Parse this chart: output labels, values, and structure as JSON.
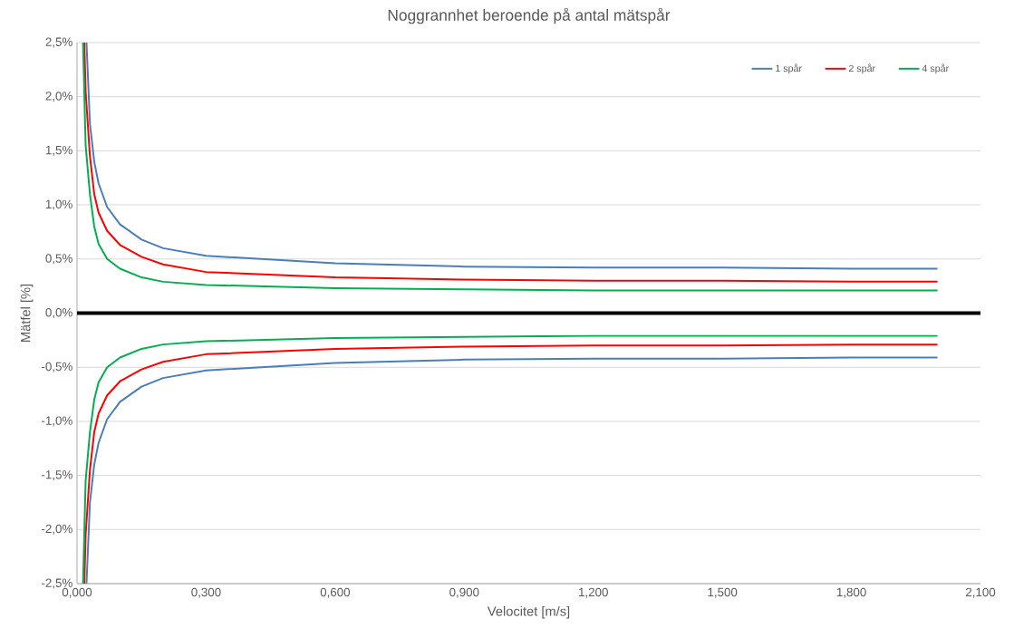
{
  "chart_data": {
    "type": "line",
    "title": "Noggrannhet beroende på antal mätspår",
    "xlabel": "Velocitet [m/s]",
    "ylabel": "Mätfel [%]",
    "series": [
      {
        "name": "1 spår",
        "color": "#4a7ebb",
        "x": [
          0.022,
          0.03,
          0.04,
          0.05,
          0.07,
          0.1,
          0.15,
          0.2,
          0.3,
          0.6,
          0.9,
          1.2,
          1.5,
          1.8,
          2.0
        ],
        "values": [
          2.5,
          1.75,
          1.4,
          1.2,
          0.98,
          0.82,
          0.68,
          0.6,
          0.53,
          0.46,
          0.43,
          0.42,
          0.42,
          0.41,
          0.41
        ]
      },
      {
        "name": "2 spår",
        "color": "#ff0000",
        "x": [
          0.017,
          0.02,
          0.03,
          0.04,
          0.05,
          0.07,
          0.1,
          0.15,
          0.2,
          0.3,
          0.6,
          0.9,
          1.2,
          1.5,
          1.8,
          2.0
        ],
        "values": [
          2.5,
          2.05,
          1.45,
          1.1,
          0.93,
          0.76,
          0.63,
          0.52,
          0.45,
          0.38,
          0.33,
          0.31,
          0.3,
          0.3,
          0.29,
          0.29
        ]
      },
      {
        "name": "4 spår",
        "color": "#00b050",
        "x": [
          0.014,
          0.02,
          0.03,
          0.04,
          0.05,
          0.07,
          0.1,
          0.15,
          0.2,
          0.3,
          0.6,
          0.9,
          1.2,
          1.5,
          1.8,
          2.0
        ],
        "values": [
          2.5,
          1.55,
          1.1,
          0.8,
          0.64,
          0.5,
          0.41,
          0.33,
          0.29,
          0.26,
          0.23,
          0.22,
          0.21,
          0.21,
          0.21,
          0.21
        ]
      },
      {
        "color": "#4a7ebb",
        "x": [
          0.022,
          0.03,
          0.04,
          0.05,
          0.07,
          0.1,
          0.15,
          0.2,
          0.3,
          0.6,
          0.9,
          1.2,
          1.5,
          1.8,
          2.0
        ],
        "values": [
          -2.5,
          -1.75,
          -1.4,
          -1.2,
          -0.98,
          -0.82,
          -0.68,
          -0.6,
          -0.53,
          -0.46,
          -0.43,
          -0.42,
          -0.42,
          -0.41,
          -0.41
        ]
      },
      {
        "color": "#ff0000",
        "x": [
          0.017,
          0.02,
          0.03,
          0.04,
          0.05,
          0.07,
          0.1,
          0.15,
          0.2,
          0.3,
          0.6,
          0.9,
          1.2,
          1.5,
          1.8,
          2.0
        ],
        "values": [
          -2.5,
          -2.05,
          -1.45,
          -1.1,
          -0.93,
          -0.76,
          -0.63,
          -0.52,
          -0.45,
          -0.38,
          -0.33,
          -0.31,
          -0.3,
          -0.3,
          -0.29,
          -0.29
        ]
      },
      {
        "color": "#00b050",
        "x": [
          0.014,
          0.02,
          0.03,
          0.04,
          0.05,
          0.07,
          0.1,
          0.15,
          0.2,
          0.3,
          0.6,
          0.9,
          1.2,
          1.5,
          1.8,
          2.0
        ],
        "values": [
          -2.5,
          -1.55,
          -1.1,
          -0.8,
          -0.64,
          -0.5,
          -0.41,
          -0.33,
          -0.29,
          -0.26,
          -0.23,
          -0.22,
          -0.21,
          -0.21,
          -0.21,
          -0.21
        ]
      }
    ],
    "xlim": [
      0,
      2.1
    ],
    "xticks": [
      {
        "value": 0,
        "label": "0,000"
      },
      {
        "value": 0.3,
        "label": "0,300"
      },
      {
        "value": 0.6,
        "label": "0,600"
      },
      {
        "value": 0.9,
        "label": "0,900"
      },
      {
        "value": 1.2,
        "label": "1,200"
      },
      {
        "value": 1.5,
        "label": "1,500"
      },
      {
        "value": 1.8,
        "label": "1,800"
      },
      {
        "value": 2.1,
        "label": "2,100"
      }
    ],
    "ylim": [
      -2.5,
      2.5
    ],
    "yticks": [
      {
        "value": -2.5,
        "label": "-2,5%"
      },
      {
        "value": -2.0,
        "label": "-2,0%"
      },
      {
        "value": -1.5,
        "label": "-1,5%"
      },
      {
        "value": -1.0,
        "label": "-1,0%"
      },
      {
        "value": -0.5,
        "label": "-0,5%"
      },
      {
        "value": 0,
        "label": "0,0%"
      },
      {
        "value": 0.5,
        "label": "0,5%"
      },
      {
        "value": 1.0,
        "label": "1,0%"
      },
      {
        "value": 1.5,
        "label": "1,5%"
      },
      {
        "value": 2.0,
        "label": "2,0%"
      },
      {
        "value": 2.5,
        "label": "2,5%"
      }
    ],
    "ref_lines": [
      {
        "axis": "y",
        "value": 0,
        "color": "#000000"
      }
    ],
    "grid": "y",
    "legend": "top right",
    "marker": "none",
    "line_style": "solid"
  }
}
